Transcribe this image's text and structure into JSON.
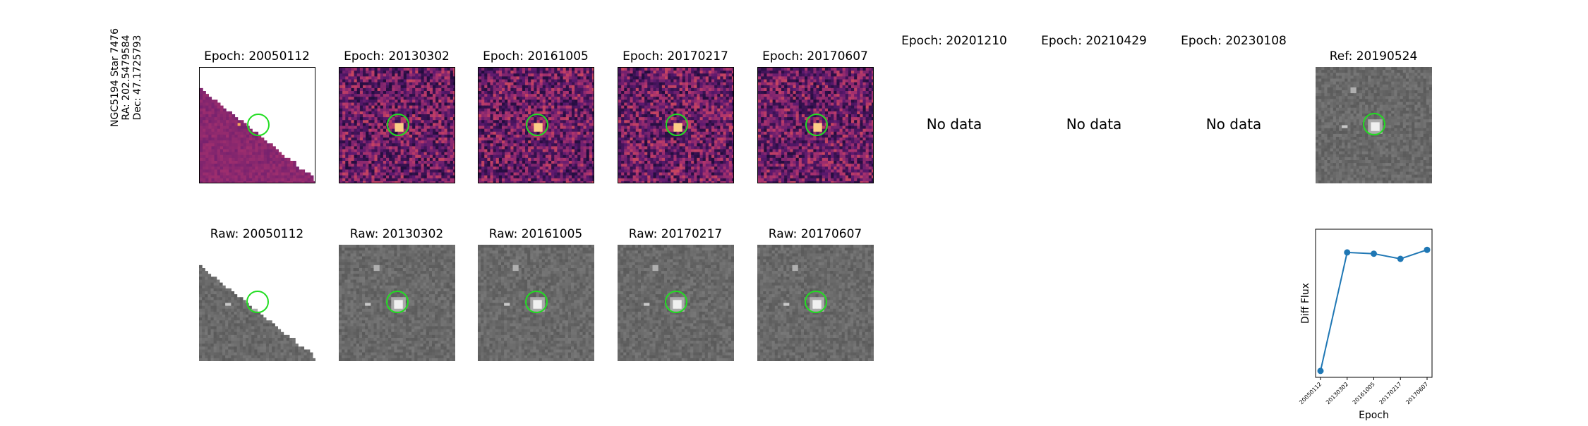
{
  "star_label": {
    "line1": "NGC5194 Star 7476",
    "line2": "RA: 202.5479584",
    "line3": "Dec: 47.1725793"
  },
  "epochs": [
    {
      "title": "Epoch: 20050112",
      "raw_title": "Raw: 20050112",
      "has_data": true,
      "partial": true
    },
    {
      "title": "Epoch: 20130302",
      "raw_title": "Raw: 20130302",
      "has_data": true,
      "partial": false
    },
    {
      "title": "Epoch: 20161005",
      "raw_title": "Raw: 20161005",
      "has_data": true,
      "partial": false
    },
    {
      "title": "Epoch: 20170217",
      "raw_title": "Raw: 20170217",
      "has_data": true,
      "partial": false
    },
    {
      "title": "Epoch: 20170607",
      "raw_title": "Raw: 20170607",
      "has_data": true,
      "partial": false
    },
    {
      "title": "Epoch: 20201210",
      "has_data": false,
      "no_data_text": "No data"
    },
    {
      "title": "Epoch: 20210429",
      "has_data": false,
      "no_data_text": "No data"
    },
    {
      "title": "Epoch: 20230108",
      "has_data": false,
      "no_data_text": "No data"
    }
  ],
  "reference": {
    "title": "Ref: 20190524"
  },
  "chart_data": {
    "type": "line",
    "x": [
      "20050112",
      "20130302",
      "20161005",
      "20170217",
      "20170607"
    ],
    "values": [
      0.0,
      0.92,
      0.91,
      0.87,
      0.94
    ],
    "ylim": [
      -0.05,
      1.1
    ],
    "xlabel": "Epoch",
    "ylabel": "Diff Flux",
    "color": "#1f77b4"
  },
  "colors": {
    "marker_ring": "#22dd22",
    "series": "#1f77b4"
  }
}
